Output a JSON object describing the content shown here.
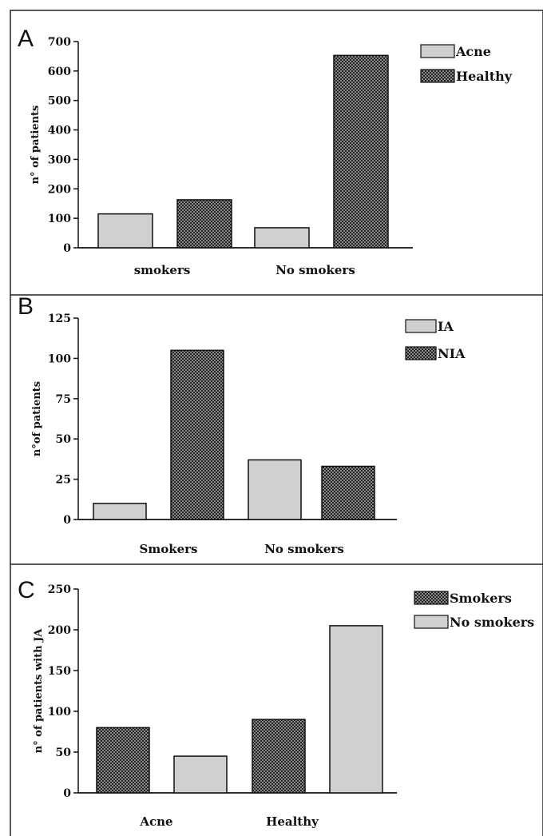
{
  "chart_data": [
    {
      "type": "bar",
      "panel": "A",
      "categories": [
        "smokers",
        "No smokers"
      ],
      "series": [
        {
          "name": "Acne",
          "values": [
            115,
            68
          ],
          "pattern": "light"
        },
        {
          "name": "Healthy",
          "values": [
            163,
            653
          ],
          "pattern": "hatch"
        }
      ],
      "ylabel": "n° of patients",
      "ylim": [
        0,
        700
      ],
      "yticks": [
        0,
        100,
        200,
        300,
        400,
        500,
        600,
        700
      ],
      "legend": "top-right"
    },
    {
      "type": "bar",
      "panel": "B",
      "categories": [
        "Smokers",
        "No smokers"
      ],
      "series": [
        {
          "name": "IA",
          "values": [
            10,
            37
          ],
          "pattern": "light"
        },
        {
          "name": "NIA",
          "values": [
            105,
            33
          ],
          "pattern": "hatch"
        }
      ],
      "ylabel": "n°of patients",
      "ylim": [
        0,
        125
      ],
      "yticks": [
        0,
        25,
        50,
        75,
        100,
        125
      ],
      "legend": "top-right"
    },
    {
      "type": "bar",
      "panel": "C",
      "categories": [
        "Acne",
        "Healthy"
      ],
      "series": [
        {
          "name": "Smokers",
          "values": [
            80,
            90
          ],
          "pattern": "hatch"
        },
        {
          "name": "No smokers",
          "values": [
            45,
            205
          ],
          "pattern": "light"
        }
      ],
      "ylabel": "n° of patients with JA",
      "ylim": [
        0,
        250
      ],
      "yticks": [
        0,
        50,
        100,
        150,
        200,
        250
      ],
      "legend": "top-right"
    }
  ],
  "colors": {
    "light": "#d0d0d0",
    "dark": "#1a1a1a",
    "hatch_bg": "#8a8a8a"
  }
}
